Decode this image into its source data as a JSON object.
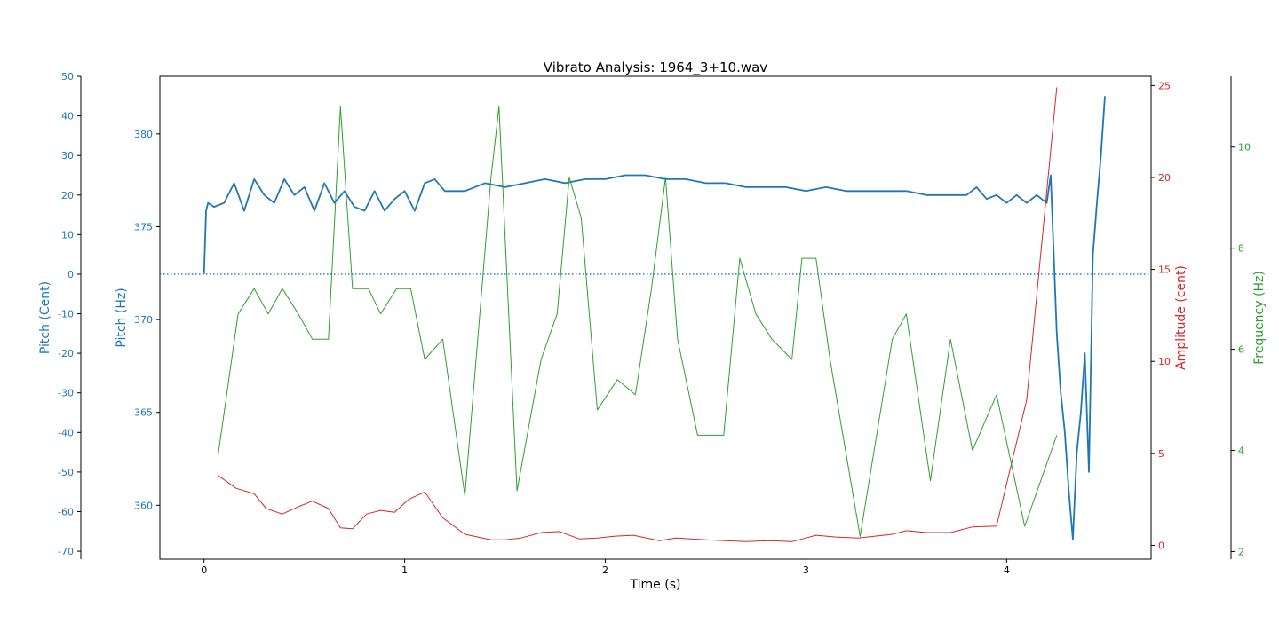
{
  "chart_data": {
    "type": "line",
    "title": "Vibrato Analysis: 1964_3+10.wav",
    "xlabel": "Time (s)",
    "xlim": [
      -0.22,
      4.72
    ],
    "xticks": [
      0,
      1,
      2,
      3,
      4
    ],
    "grid": false,
    "colors": {
      "blue": "#1f77b4",
      "red": "#d62728",
      "green": "#2ca02c"
    },
    "axes": {
      "pitch_cent": {
        "label": "Pitch (Cent)",
        "color": "#1f77b4",
        "ylim": [
          -72,
          50
        ],
        "ticks": [
          50,
          40,
          30,
          20,
          10,
          0,
          -10,
          -20,
          -30,
          -40,
          -50,
          -60,
          -70
        ]
      },
      "pitch_hz": {
        "label": "Pitch (Hz)",
        "color": "#1f77b4",
        "ylim": [
          357.1,
          383.1
        ],
        "ticks": [
          380,
          375,
          370,
          365,
          360
        ]
      },
      "amplitude": {
        "label": "Amplitude (cent)",
        "color": "#d62728",
        "ylim": [
          -0.75,
          25.5
        ],
        "ticks": [
          25,
          20,
          15,
          10,
          5,
          0
        ]
      },
      "frequency": {
        "label": "Frequency (Hz)",
        "color": "#2ca02c",
        "ylim": [
          1.85,
          11.4
        ],
        "ticks": [
          10,
          8,
          6,
          4,
          2
        ]
      }
    },
    "reference_line": {
      "axis": "pitch_cent",
      "y": 0,
      "style": "dotted",
      "color": "#1f77b4"
    },
    "series": [
      {
        "key": "pitch",
        "axis": "pitch_cent",
        "color": "#1f77b4",
        "x": [
          0.0,
          0.01,
          0.02,
          0.05,
          0.1,
          0.15,
          0.2,
          0.25,
          0.3,
          0.35,
          0.4,
          0.45,
          0.5,
          0.55,
          0.6,
          0.65,
          0.7,
          0.75,
          0.8,
          0.85,
          0.9,
          0.95,
          1.0,
          1.05,
          1.1,
          1.15,
          1.2,
          1.25,
          1.3,
          1.4,
          1.5,
          1.6,
          1.7,
          1.8,
          1.9,
          2.0,
          2.1,
          2.2,
          2.3,
          2.4,
          2.5,
          2.6,
          2.7,
          2.8,
          2.9,
          3.0,
          3.1,
          3.2,
          3.3,
          3.4,
          3.5,
          3.6,
          3.7,
          3.8,
          3.85,
          3.9,
          3.95,
          4.0,
          4.05,
          4.1,
          4.15,
          4.2,
          4.22,
          4.25,
          4.27,
          4.29,
          4.31,
          4.33,
          4.35,
          4.37,
          4.39,
          4.41,
          4.43,
          4.45,
          4.47,
          4.49
        ],
        "y": [
          0,
          16,
          18,
          17,
          18,
          23,
          16,
          24,
          20,
          18,
          24,
          20,
          22,
          16,
          23,
          18,
          21,
          17,
          16,
          21,
          16,
          19,
          21,
          16,
          23,
          24,
          21,
          21,
          21,
          23,
          22,
          23,
          24,
          23,
          24,
          24,
          25,
          25,
          24,
          24,
          23,
          23,
          22,
          22,
          22,
          21,
          22,
          21,
          21,
          21,
          21,
          20,
          20,
          20,
          22,
          19,
          20,
          18,
          20,
          18,
          20,
          18,
          25,
          -15,
          -30,
          -40,
          -55,
          -67,
          -45,
          -35,
          -20,
          -50,
          5,
          18,
          30,
          45
        ]
      },
      {
        "key": "amplitude",
        "axis": "amplitude",
        "color": "#d62728",
        "x": [
          0.07,
          0.16,
          0.25,
          0.31,
          0.39,
          0.47,
          0.54,
          0.62,
          0.68,
          0.74,
          0.81,
          0.88,
          0.95,
          1.02,
          1.1,
          1.19,
          1.3,
          1.43,
          1.5,
          1.58,
          1.68,
          1.77,
          1.87,
          1.96,
          2.05,
          2.14,
          2.27,
          2.35,
          2.5,
          2.6,
          2.7,
          2.82,
          2.93,
          3.0,
          3.05,
          3.15,
          3.26,
          3.43,
          3.5,
          3.6,
          3.72,
          3.83,
          3.95,
          4.1,
          4.25
        ],
        "y": [
          3.8,
          3.1,
          2.8,
          2.0,
          1.7,
          2.1,
          2.4,
          2.0,
          0.95,
          0.9,
          1.7,
          1.9,
          1.8,
          2.5,
          2.9,
          1.5,
          0.6,
          0.3,
          0.3,
          0.4,
          0.7,
          0.75,
          0.35,
          0.4,
          0.5,
          0.55,
          0.25,
          0.4,
          0.3,
          0.25,
          0.2,
          0.25,
          0.2,
          0.4,
          0.55,
          0.45,
          0.4,
          0.6,
          0.8,
          0.7,
          0.7,
          1.0,
          1.05,
          7.9,
          24.9
        ]
      },
      {
        "key": "frequency",
        "axis": "frequency",
        "color": "#2ca02c",
        "x": [
          0.07,
          0.17,
          0.25,
          0.32,
          0.39,
          0.47,
          0.54,
          0.62,
          0.68,
          0.74,
          0.82,
          0.88,
          0.96,
          1.03,
          1.1,
          1.19,
          1.3,
          1.43,
          1.47,
          1.56,
          1.68,
          1.76,
          1.82,
          1.88,
          1.96,
          2.06,
          2.15,
          2.23,
          2.3,
          2.36,
          2.46,
          2.59,
          2.67,
          2.75,
          2.83,
          2.93,
          2.98,
          3.05,
          3.12,
          3.27,
          3.43,
          3.5,
          3.62,
          3.72,
          3.83,
          3.95,
          4.09,
          4.25
        ],
        "y": [
          3.9,
          6.7,
          7.2,
          6.7,
          7.2,
          6.7,
          6.2,
          6.2,
          10.8,
          7.2,
          7.2,
          6.7,
          7.2,
          7.2,
          5.8,
          6.2,
          3.1,
          9.4,
          10.8,
          3.2,
          5.8,
          6.7,
          9.4,
          8.6,
          4.8,
          5.4,
          5.1,
          7.2,
          9.4,
          6.2,
          4.3,
          4.3,
          7.8,
          6.7,
          6.2,
          5.8,
          7.8,
          7.8,
          5.8,
          2.3,
          6.2,
          6.7,
          3.4,
          6.2,
          4.0,
          5.1,
          2.5,
          4.3
        ]
      }
    ]
  }
}
